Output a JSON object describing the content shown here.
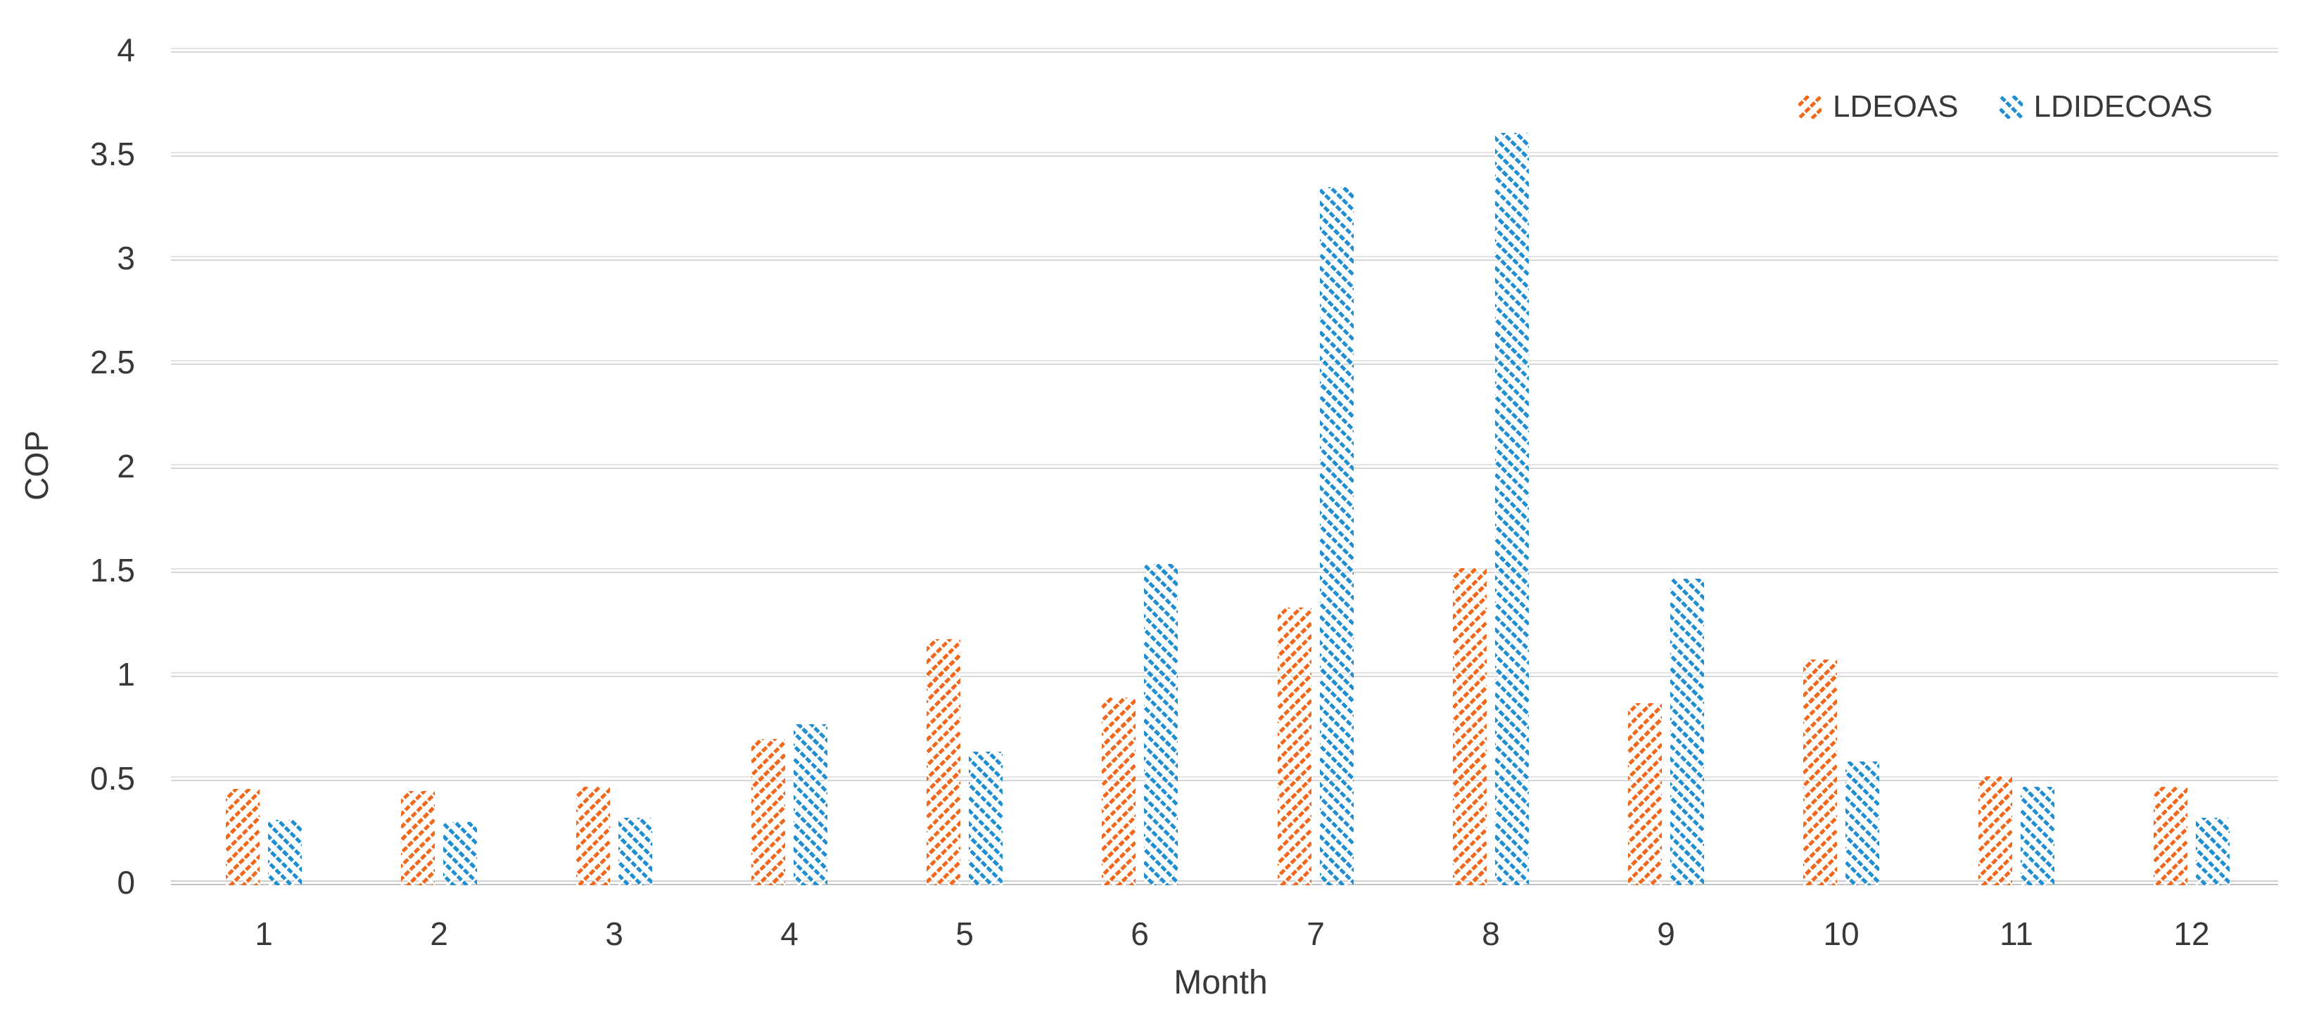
{
  "chart_data": {
    "type": "bar",
    "title": "",
    "xlabel": "Month",
    "ylabel": "COP",
    "categories": [
      "1",
      "2",
      "3",
      "4",
      "5",
      "6",
      "7",
      "8",
      "9",
      "10",
      "11",
      "12"
    ],
    "series": [
      {
        "name": "LDEOAS",
        "color": "#f2691d",
        "pattern": "diagonal-up",
        "values": [
          0.45,
          0.44,
          0.46,
          0.69,
          1.17,
          0.89,
          1.32,
          1.51,
          0.86,
          1.07,
          0.51,
          0.46
        ]
      },
      {
        "name": "LDIDECOAS",
        "color": "#1f8ed3",
        "pattern": "diagonal-down",
        "values": [
          0.3,
          0.29,
          0.31,
          0.76,
          0.63,
          1.53,
          3.34,
          3.6,
          1.46,
          0.58,
          0.46,
          0.31
        ]
      }
    ],
    "ylim": [
      0,
      4
    ],
    "yticks": [
      {
        "label": "0",
        "v": 0
      },
      {
        "label": "0.5",
        "v": 0.5
      },
      {
        "label": "1",
        "v": 1
      },
      {
        "label": "1.5",
        "v": 1.5
      },
      {
        "label": "2",
        "v": 2
      },
      {
        "label": "2.5",
        "v": 2.5
      },
      {
        "label": "3",
        "v": 3
      },
      {
        "label": "3.5",
        "v": 3.5
      },
      {
        "label": "4",
        "v": 4
      }
    ],
    "grid": "horizontal",
    "legend_position": "top-right",
    "colors": {
      "grid": "#d9d9d9",
      "baseline": "#c6c6c6",
      "text": "#383838",
      "background": "#ffffff"
    }
  }
}
